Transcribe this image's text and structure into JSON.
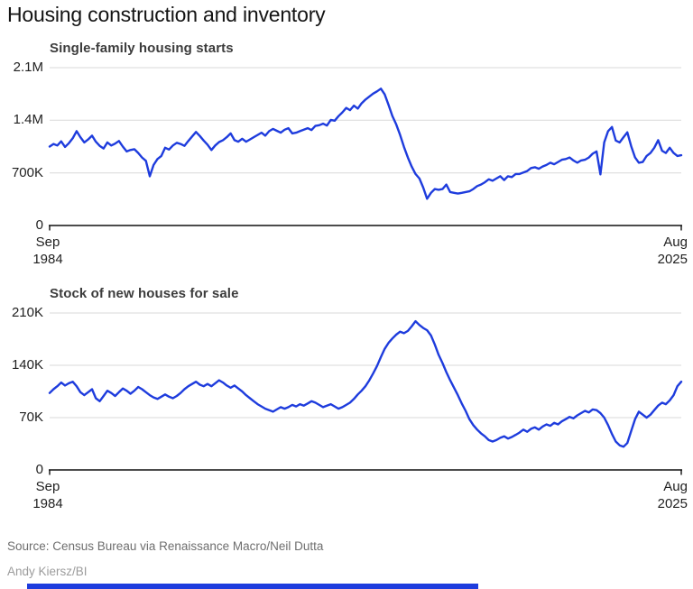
{
  "page": {
    "title": "Housing construction and inventory",
    "source": "Source: Census Bureau via Renaissance Macro/Neil Dutta",
    "credit": "Andy Kiersz/BI"
  },
  "colors": {
    "line": "#1e3cdd",
    "grid": "#d9d9d9",
    "axis": "#111111",
    "accent_bar": "#1e3cdd"
  },
  "chart_data": [
    {
      "type": "line",
      "title": "Single-family housing starts",
      "x_start": "Sep 1984",
      "x_end": "Aug 2025",
      "x_tick_labels": [
        [
          "Sep",
          "1984"
        ],
        [
          "Aug",
          "2025"
        ]
      ],
      "y_ticks": [
        "2.1M",
        "1.4M",
        "700K",
        "0"
      ],
      "ylim": [
        0,
        2100000
      ],
      "grid": "horizontal-only",
      "legend": "none",
      "frequency": "quarterly (Sep 1984 to Aug 2025)",
      "unit": "thousands of units",
      "values_thousands": [
        1050,
        1085,
        1065,
        1120,
        1045,
        1095,
        1160,
        1255,
        1175,
        1105,
        1145,
        1195,
        1115,
        1060,
        1025,
        1105,
        1065,
        1090,
        1125,
        1050,
        985,
        1005,
        1015,
        965,
        905,
        860,
        655,
        805,
        885,
        925,
        1035,
        1010,
        1065,
        1100,
        1085,
        1060,
        1125,
        1185,
        1245,
        1190,
        1130,
        1075,
        1005,
        1065,
        1110,
        1135,
        1175,
        1225,
        1135,
        1115,
        1155,
        1115,
        1145,
        1175,
        1205,
        1235,
        1195,
        1255,
        1285,
        1260,
        1235,
        1275,
        1295,
        1225,
        1235,
        1255,
        1275,
        1295,
        1270,
        1325,
        1335,
        1355,
        1330,
        1405,
        1395,
        1455,
        1505,
        1565,
        1535,
        1595,
        1555,
        1625,
        1675,
        1715,
        1755,
        1785,
        1820,
        1745,
        1605,
        1455,
        1345,
        1205,
        1045,
        905,
        785,
        685,
        625,
        505,
        355,
        435,
        485,
        475,
        485,
        545,
        445,
        435,
        425,
        435,
        445,
        455,
        485,
        525,
        545,
        575,
        615,
        595,
        625,
        655,
        605,
        655,
        645,
        685,
        685,
        705,
        725,
        765,
        775,
        755,
        785,
        805,
        835,
        815,
        845,
        875,
        885,
        905,
        865,
        835,
        865,
        875,
        905,
        955,
        985,
        680,
        1105,
        1255,
        1310,
        1130,
        1105,
        1175,
        1240,
        1055,
        905,
        835,
        845,
        925,
        965,
        1035,
        1135,
        995,
        965,
        1035,
        965,
        925,
        935
      ]
    },
    {
      "type": "line",
      "title": "Stock of new houses for sale",
      "x_start": "Sep 1984",
      "x_end": "Aug 2025",
      "x_tick_labels": [
        [
          "Sep",
          "1984"
        ],
        [
          "Aug",
          "2025"
        ]
      ],
      "y_ticks": [
        "210K",
        "140K",
        "70K",
        "0"
      ],
      "ylim": [
        0,
        210000
      ],
      "grid": "horizontal-only",
      "legend": "none",
      "frequency": "quarterly (Sep 1984 to Aug 2025)",
      "unit": "thousands of houses",
      "values_thousands": [
        103,
        108,
        112,
        117,
        113,
        116,
        118,
        112,
        104,
        100,
        104,
        108,
        96,
        92,
        99,
        106,
        103,
        99,
        104,
        109,
        106,
        102,
        106,
        111,
        108,
        104,
        100,
        97,
        95,
        98,
        101,
        98,
        96,
        99,
        103,
        108,
        112,
        115,
        118,
        114,
        112,
        115,
        112,
        116,
        120,
        117,
        113,
        110,
        113,
        109,
        105,
        100,
        96,
        92,
        88,
        85,
        82,
        80,
        78,
        81,
        84,
        82,
        84,
        87,
        85,
        88,
        86,
        89,
        92,
        90,
        87,
        84,
        86,
        88,
        85,
        82,
        84,
        87,
        90,
        95,
        101,
        106,
        112,
        120,
        129,
        139,
        151,
        162,
        170,
        176,
        181,
        185,
        183,
        186,
        192,
        199,
        194,
        190,
        187,
        180,
        168,
        154,
        143,
        131,
        120,
        110,
        100,
        89,
        79,
        68,
        60,
        54,
        49,
        45,
        40,
        38,
        40,
        43,
        45,
        42,
        44,
        47,
        50,
        54,
        51,
        55,
        57,
        54,
        58,
        61,
        59,
        63,
        61,
        65,
        68,
        71,
        69,
        73,
        76,
        79,
        77,
        81,
        80,
        76,
        70,
        60,
        48,
        38,
        33,
        31,
        36,
        52,
        68,
        78,
        74,
        70,
        74,
        80,
        86,
        90,
        88,
        93,
        100,
        112,
        118
      ]
    }
  ]
}
